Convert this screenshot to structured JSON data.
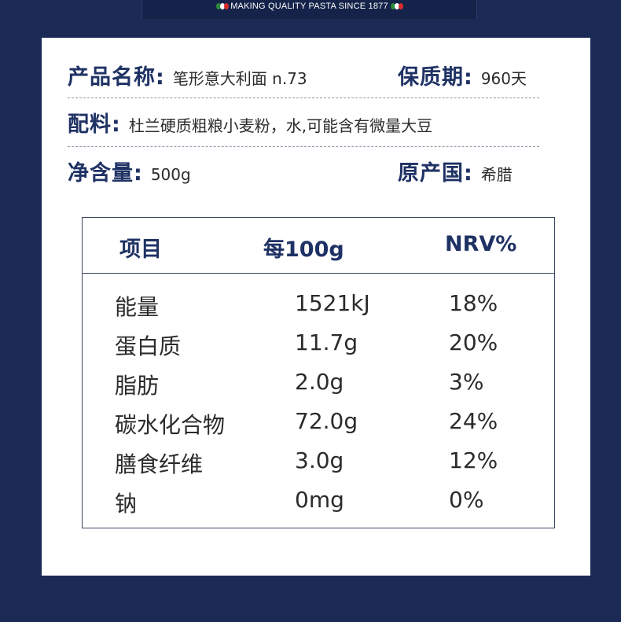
{
  "header": {
    "tagline": "MAKING QUALITY PASTA SINCE 1877",
    "flag_colors": [
      "#2e8b3a",
      "#ffffff",
      "#d42b2b"
    ]
  },
  "info": {
    "product_name_label": "产品名称:",
    "product_name_value": "笔形意大利面 n.73",
    "shelf_life_label": "保质期:",
    "shelf_life_value": "960天",
    "ingredients_label": "配料:",
    "ingredients_value": "杜兰硬质粗粮小麦粉，水,可能含有微量大豆",
    "net_weight_label": "净含量:",
    "net_weight_value": "500g",
    "origin_label": "原产国:",
    "origin_value": "希腊"
  },
  "nutrition": {
    "headers": [
      "项目",
      "每100g",
      "NRV%"
    ],
    "rows": [
      {
        "item": "能量",
        "per100g": "1521kJ",
        "nrv": "18%"
      },
      {
        "item": "蛋白质",
        "per100g": "11.7g",
        "nrv": "20%"
      },
      {
        "item": "脂肪",
        "per100g": "2.0g",
        "nrv": "3%"
      },
      {
        "item": "碳水化合物",
        "per100g": "72.0g",
        "nrv": "24%"
      },
      {
        "item": "膳食纤维",
        "per100g": "3.0g",
        "nrv": "12%"
      },
      {
        "item": "钠",
        "per100g": "0mg",
        "nrv": "0%"
      }
    ]
  }
}
